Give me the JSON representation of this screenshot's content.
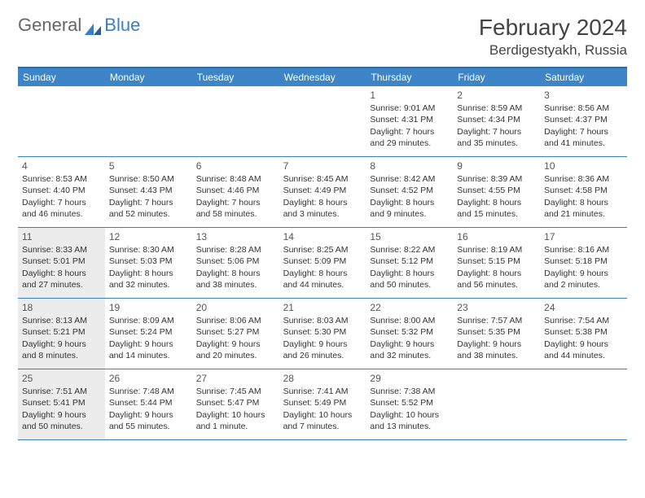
{
  "logo": {
    "general": "General",
    "blue": "Blue"
  },
  "title": "February 2024",
  "location": "Berdigestyakh, Russia",
  "colors": {
    "header_bg": "#3d85c6",
    "border": "#3a7fc4",
    "shaded": "#ececec",
    "text": "#333333",
    "logo_gray": "#666666",
    "logo_blue": "#3a7fc4"
  },
  "days_of_week": [
    "Sunday",
    "Monday",
    "Tuesday",
    "Wednesday",
    "Thursday",
    "Friday",
    "Saturday"
  ],
  "weeks": [
    [
      {
        "blank": true
      },
      {
        "blank": true
      },
      {
        "blank": true
      },
      {
        "blank": true
      },
      {
        "day": "1",
        "sunrise": "9:01 AM",
        "sunset": "4:31 PM",
        "daylight1": "Daylight: 7 hours",
        "daylight2": "and 29 minutes."
      },
      {
        "day": "2",
        "sunrise": "8:59 AM",
        "sunset": "4:34 PM",
        "daylight1": "Daylight: 7 hours",
        "daylight2": "and 35 minutes."
      },
      {
        "day": "3",
        "sunrise": "8:56 AM",
        "sunset": "4:37 PM",
        "daylight1": "Daylight: 7 hours",
        "daylight2": "and 41 minutes."
      }
    ],
    [
      {
        "day": "4",
        "sunrise": "8:53 AM",
        "sunset": "4:40 PM",
        "daylight1": "Daylight: 7 hours",
        "daylight2": "and 46 minutes."
      },
      {
        "day": "5",
        "sunrise": "8:50 AM",
        "sunset": "4:43 PM",
        "daylight1": "Daylight: 7 hours",
        "daylight2": "and 52 minutes."
      },
      {
        "day": "6",
        "sunrise": "8:48 AM",
        "sunset": "4:46 PM",
        "daylight1": "Daylight: 7 hours",
        "daylight2": "and 58 minutes."
      },
      {
        "day": "7",
        "sunrise": "8:45 AM",
        "sunset": "4:49 PM",
        "daylight1": "Daylight: 8 hours",
        "daylight2": "and 3 minutes."
      },
      {
        "day": "8",
        "sunrise": "8:42 AM",
        "sunset": "4:52 PM",
        "daylight1": "Daylight: 8 hours",
        "daylight2": "and 9 minutes."
      },
      {
        "day": "9",
        "sunrise": "8:39 AM",
        "sunset": "4:55 PM",
        "daylight1": "Daylight: 8 hours",
        "daylight2": "and 15 minutes."
      },
      {
        "day": "10",
        "sunrise": "8:36 AM",
        "sunset": "4:58 PM",
        "daylight1": "Daylight: 8 hours",
        "daylight2": "and 21 minutes."
      }
    ],
    [
      {
        "day": "11",
        "sunrise": "8:33 AM",
        "sunset": "5:01 PM",
        "daylight1": "Daylight: 8 hours",
        "daylight2": "and 27 minutes.",
        "shaded": true
      },
      {
        "day": "12",
        "sunrise": "8:30 AM",
        "sunset": "5:03 PM",
        "daylight1": "Daylight: 8 hours",
        "daylight2": "and 32 minutes."
      },
      {
        "day": "13",
        "sunrise": "8:28 AM",
        "sunset": "5:06 PM",
        "daylight1": "Daylight: 8 hours",
        "daylight2": "and 38 minutes."
      },
      {
        "day": "14",
        "sunrise": "8:25 AM",
        "sunset": "5:09 PM",
        "daylight1": "Daylight: 8 hours",
        "daylight2": "and 44 minutes."
      },
      {
        "day": "15",
        "sunrise": "8:22 AM",
        "sunset": "5:12 PM",
        "daylight1": "Daylight: 8 hours",
        "daylight2": "and 50 minutes."
      },
      {
        "day": "16",
        "sunrise": "8:19 AM",
        "sunset": "5:15 PM",
        "daylight1": "Daylight: 8 hours",
        "daylight2": "and 56 minutes."
      },
      {
        "day": "17",
        "sunrise": "8:16 AM",
        "sunset": "5:18 PM",
        "daylight1": "Daylight: 9 hours",
        "daylight2": "and 2 minutes."
      }
    ],
    [
      {
        "day": "18",
        "sunrise": "8:13 AM",
        "sunset": "5:21 PM",
        "daylight1": "Daylight: 9 hours",
        "daylight2": "and 8 minutes.",
        "shaded": true
      },
      {
        "day": "19",
        "sunrise": "8:09 AM",
        "sunset": "5:24 PM",
        "daylight1": "Daylight: 9 hours",
        "daylight2": "and 14 minutes."
      },
      {
        "day": "20",
        "sunrise": "8:06 AM",
        "sunset": "5:27 PM",
        "daylight1": "Daylight: 9 hours",
        "daylight2": "and 20 minutes."
      },
      {
        "day": "21",
        "sunrise": "8:03 AM",
        "sunset": "5:30 PM",
        "daylight1": "Daylight: 9 hours",
        "daylight2": "and 26 minutes."
      },
      {
        "day": "22",
        "sunrise": "8:00 AM",
        "sunset": "5:32 PM",
        "daylight1": "Daylight: 9 hours",
        "daylight2": "and 32 minutes."
      },
      {
        "day": "23",
        "sunrise": "7:57 AM",
        "sunset": "5:35 PM",
        "daylight1": "Daylight: 9 hours",
        "daylight2": "and 38 minutes."
      },
      {
        "day": "24",
        "sunrise": "7:54 AM",
        "sunset": "5:38 PM",
        "daylight1": "Daylight: 9 hours",
        "daylight2": "and 44 minutes."
      }
    ],
    [
      {
        "day": "25",
        "sunrise": "7:51 AM",
        "sunset": "5:41 PM",
        "daylight1": "Daylight: 9 hours",
        "daylight2": "and 50 minutes.",
        "shaded": true
      },
      {
        "day": "26",
        "sunrise": "7:48 AM",
        "sunset": "5:44 PM",
        "daylight1": "Daylight: 9 hours",
        "daylight2": "and 55 minutes."
      },
      {
        "day": "27",
        "sunrise": "7:45 AM",
        "sunset": "5:47 PM",
        "daylight1": "Daylight: 10 hours",
        "daylight2": "and 1 minute."
      },
      {
        "day": "28",
        "sunrise": "7:41 AM",
        "sunset": "5:49 PM",
        "daylight1": "Daylight: 10 hours",
        "daylight2": "and 7 minutes."
      },
      {
        "day": "29",
        "sunrise": "7:38 AM",
        "sunset": "5:52 PM",
        "daylight1": "Daylight: 10 hours",
        "daylight2": "and 13 minutes."
      },
      {
        "blank": true
      },
      {
        "blank": true
      }
    ]
  ],
  "labels": {
    "sunrise": "Sunrise: ",
    "sunset": "Sunset: "
  }
}
